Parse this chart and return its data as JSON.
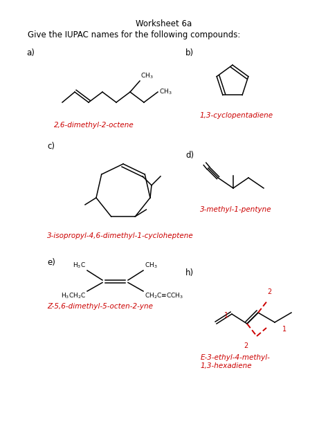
{
  "title": "Worksheet 6a",
  "subtitle": "Give the IUPAC names for the following compounds:",
  "bg_color": "#ffffff",
  "black": "#000000",
  "red": "#cc0000",
  "names": {
    "a": "2,6-dimethyl-2-octene",
    "b": "1,3-cyclopentadiene",
    "c": "3-isopropyl-4,6-dimethyl-1-cycloheptene",
    "d": "3-methyl-1-pentyne",
    "e": "Z-5,6-dimethyl-5-octen-2-yne",
    "h_line1": "E-3-ethyl-4-methyl-",
    "h_line2": "1,3-hexadiene"
  },
  "title_fs": 8.5,
  "subtitle_fs": 8.5,
  "label_fs": 8.5,
  "name_fs": 7.5,
  "struct_fs": 6.5,
  "lw": 1.1
}
